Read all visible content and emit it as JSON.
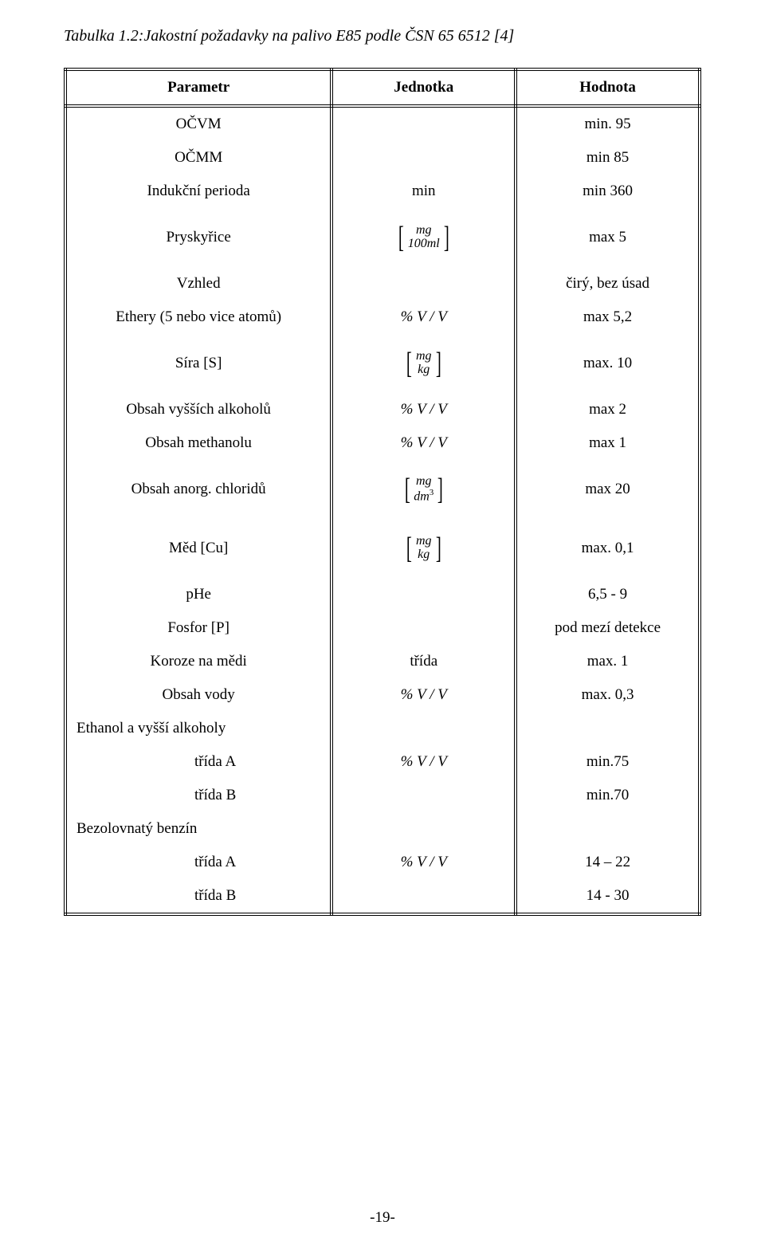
{
  "caption": "Tabulka 1.2:Jakostní požadavky na palivo E85 podle ČSN 65 6512 [4]",
  "head": {
    "c1": "Parametr",
    "c2": "Jednotka",
    "c3": "Hodnota"
  },
  "rows": {
    "ocvm": {
      "p": "OČVM",
      "u": "",
      "v": "min. 95"
    },
    "ocmm": {
      "p": "OČMM",
      "u": "",
      "v": "min 85"
    },
    "indukcni": {
      "p": "Indukční perioda",
      "u": "min",
      "v": "min 360"
    },
    "pryskyrice": {
      "p": "Pryskyřice",
      "u_num": "mg",
      "u_den": "100ml",
      "v": "max 5"
    },
    "vzhled": {
      "p": "Vzhled",
      "u": "",
      "v": "čirý, bez úsad"
    },
    "ethery": {
      "p": "Ethery (5 nebo vice atomů)",
      "u_pct": "%  V / V",
      "v": "max 5,2"
    },
    "sira": {
      "p": "Síra [S]",
      "u_num": "mg",
      "u_den": "kg",
      "v": "max. 10"
    },
    "vyssich": {
      "p": "Obsah vyšších alkoholů",
      "u_pct": "%  V / V",
      "v": "max 2"
    },
    "methanolu": {
      "p": "Obsah methanolu",
      "u_pct": "%  V / V",
      "v": "max 1"
    },
    "chloridu": {
      "p": "Obsah anorg. chloridů",
      "u_num": "mg",
      "u_den": "dm",
      "u_sup": "3",
      "v": "max 20"
    },
    "med": {
      "p": "Měd [Cu]",
      "u_num": "mg",
      "u_den": "kg",
      "v": "max. 0,1"
    },
    "phe": {
      "p": "pHe",
      "u": "",
      "v": "6,5 - 9"
    },
    "fosfor": {
      "p": "Fosfor [P]",
      "u": "",
      "v": "pod mezí detekce"
    },
    "koroze": {
      "p": "Koroze na mědi",
      "u": "třída",
      "v": "max. 1"
    },
    "vody": {
      "p": "Obsah vody",
      "u_pct": "%  V / V",
      "v": "max. 0,3"
    },
    "ethanol_h": {
      "p": "Ethanol a vyšší alkoholy"
    },
    "ethanol_a": {
      "p": "třída A",
      "u_pct": "%  V / V",
      "v": "min.75"
    },
    "ethanol_b": {
      "p": "třída B",
      "u": "",
      "v": "min.70"
    },
    "benzin_h": {
      "p": "Bezolovnatý benzín"
    },
    "benzin_a": {
      "p": "třída A",
      "u_pct": "%  V / V",
      "v": "14 – 22"
    },
    "benzin_b": {
      "p": "třída B",
      "u": "",
      "v": "14 - 30"
    }
  },
  "pageno": "-19-"
}
